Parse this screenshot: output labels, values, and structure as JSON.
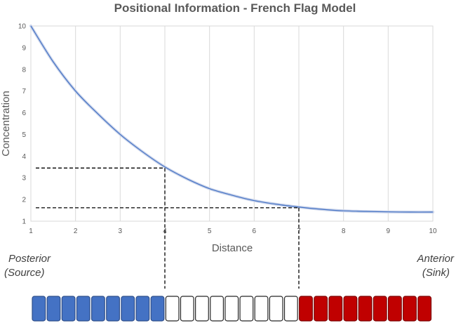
{
  "chart_data": {
    "type": "line",
    "title": "Positional Information - French Flag Model",
    "xlabel": "Distance",
    "ylabel": "Concentration",
    "xlim": [
      1,
      10
    ],
    "ylim": [
      1,
      10
    ],
    "xticks": [
      1,
      2,
      3,
      4,
      5,
      6,
      7,
      8,
      9,
      10
    ],
    "yticks": [
      1,
      2,
      3,
      4,
      5,
      6,
      7,
      8,
      9,
      10
    ],
    "grid": "vertical",
    "series": [
      {
        "color": "#4472C4",
        "x": [
          1,
          1.5,
          2,
          2.5,
          3,
          3.5,
          4,
          4.5,
          5,
          5.5,
          6,
          6.5,
          7,
          7.5,
          8,
          8.5,
          9,
          9.5,
          10
        ],
        "y": [
          10,
          8.35,
          7.0,
          5.95,
          5.0,
          4.2,
          3.5,
          2.95,
          2.5,
          2.2,
          1.95,
          1.78,
          1.65,
          1.55,
          1.48,
          1.45,
          1.43,
          1.42,
          1.42
        ]
      }
    ],
    "thresholds": [
      {
        "x": 4,
        "y": 3.45
      },
      {
        "x": 7,
        "y": 1.62
      }
    ]
  },
  "labels": {
    "left_line1": "Posterior",
    "left_line2": "(Source)",
    "right_line1": "Anterior",
    "right_line2": "(Sink)"
  },
  "cells": {
    "counts": [
      9,
      9,
      9
    ],
    "colors": [
      "#4472C4",
      "#FFFFFF",
      "#C00000"
    ]
  }
}
